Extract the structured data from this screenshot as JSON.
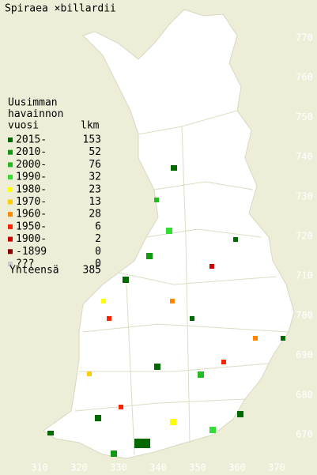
{
  "title": "Spiraea ×billardii",
  "legend": {
    "header": [
      "Uusimman",
      "havainnon",
      "vuosi"
    ],
    "count_header": "lkm",
    "rows": [
      {
        "label": "2015-",
        "count": 153,
        "color": "#006a00"
      },
      {
        "label": "2010-",
        "count": 52,
        "color": "#129812"
      },
      {
        "label": "2000-",
        "count": 76,
        "color": "#22bb22"
      },
      {
        "label": "1990-",
        "count": 32,
        "color": "#33dd33"
      },
      {
        "label": "1980-",
        "count": 23,
        "color": "#ffff00"
      },
      {
        "label": "1970-",
        "count": 13,
        "color": "#ffcc00"
      },
      {
        "label": "1960-",
        "count": 28,
        "color": "#ff8800"
      },
      {
        "label": "1950-",
        "count": 6,
        "color": "#ff2200"
      },
      {
        "label": "1900-",
        "count": 2,
        "color": "#cc0000"
      },
      {
        "label": "-1899",
        "count": 0,
        "color": "#880000"
      },
      {
        "label": "???",
        "count": 0,
        "color": "#cccccc"
      }
    ],
    "total_label": "Yhteensä",
    "total": 385
  },
  "map": {
    "yticks": [
      770,
      760,
      750,
      740,
      730,
      720,
      710,
      700,
      690,
      680,
      670
    ],
    "xticks": [
      310,
      320,
      330,
      340,
      350,
      360,
      370
    ]
  }
}
